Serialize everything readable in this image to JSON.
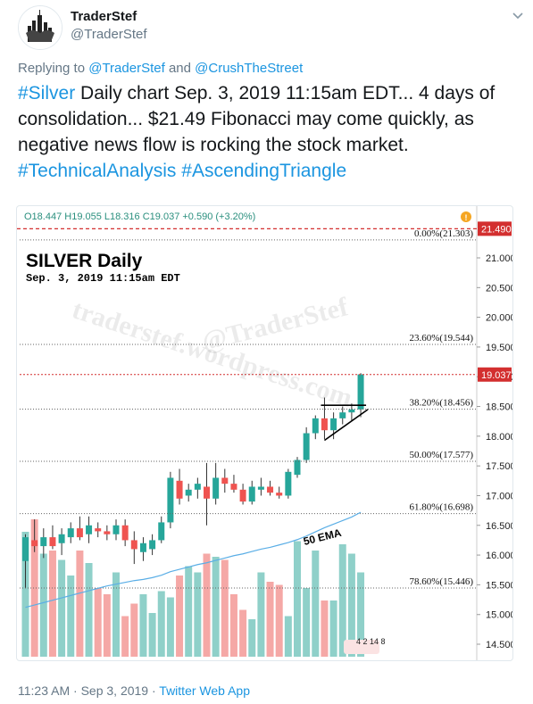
{
  "tweet": {
    "display_name": "TraderStef",
    "handle": "@TraderStef",
    "reply_prefix": "Replying to",
    "reply_to_1": "@TraderStef",
    "reply_and": "and",
    "reply_to_2": "@CrushTheStreet",
    "hashtag_silver": "#Silver",
    "text_1": " Daily chart Sep. 3, 2019 11:15am EDT... 4 days of consolidation... $21.49 Fibonacci may come quickly, as negative news flow is rocking the stock market. ",
    "hashtag_ta": "#TechnicalAnalysis",
    "hashtag_at": "#AscendingTriangle",
    "time": "11:23 AM",
    "sep1": " · ",
    "date": "Sep 3, 2019",
    "sep2": " · ",
    "source": "Twitter Web App",
    "colors": {
      "link": "#1b95e0",
      "muted": "#657786",
      "text": "#14171a"
    }
  },
  "chart": {
    "ohlc": "O18.447  H19.055  L18.316  C19.037  +0.590 (+3.20%)",
    "title": "SILVER Daily",
    "subtitle": "Sep. 3, 2019 11:15am EDT",
    "watermark_1": "@TraderStef",
    "watermark_2": "traderstef.wordpress.com",
    "ema_label": "50 EMA",
    "bottom_numbers": "4 2 14 8",
    "top_price_label": "21.490",
    "current_price_label": "19.037",
    "colors": {
      "up": "#26a69a",
      "down": "#ef5350",
      "ema": "#5aaee6",
      "redline": "#d32f2f",
      "fib": "#666666"
    }
  },
  "chart_data": {
    "type": "candlestick",
    "title": "SILVER Daily",
    "ylim": [
      14.3,
      21.6
    ],
    "y_ticks": [
      "21.000",
      "20.500",
      "20.000",
      "19.500",
      "19.000",
      "18.500",
      "18.000",
      "17.500",
      "17.000",
      "16.500",
      "16.000",
      "15.500",
      "15.000",
      "14.500"
    ],
    "fib_levels": [
      {
        "label": "0.00%(21.303)",
        "value": 21.303
      },
      {
        "label": "23.60%(19.544)",
        "value": 19.544
      },
      {
        "label": "38.20%(18.456)",
        "value": 18.456
      },
      {
        "label": "50.00%(17.577)",
        "value": 17.577
      },
      {
        "label": "61.80%(16.698)",
        "value": 16.698
      },
      {
        "label": "78.60%(15.446)",
        "value": 15.446
      }
    ],
    "candles": [
      {
        "o": 15.9,
        "h": 16.35,
        "l": 15.45,
        "c": 16.3
      },
      {
        "o": 16.25,
        "h": 16.6,
        "l": 16.05,
        "c": 16.15
      },
      {
        "o": 16.15,
        "h": 16.45,
        "l": 15.95,
        "c": 16.3
      },
      {
        "o": 16.3,
        "h": 16.5,
        "l": 16.1,
        "c": 16.15
      },
      {
        "o": 16.2,
        "h": 16.45,
        "l": 16.0,
        "c": 16.35
      },
      {
        "o": 16.3,
        "h": 16.55,
        "l": 16.2,
        "c": 16.45
      },
      {
        "o": 16.45,
        "h": 16.65,
        "l": 16.25,
        "c": 16.3
      },
      {
        "o": 16.35,
        "h": 16.65,
        "l": 16.2,
        "c": 16.5
      },
      {
        "o": 16.45,
        "h": 16.55,
        "l": 16.3,
        "c": 16.4
      },
      {
        "o": 16.4,
        "h": 16.5,
        "l": 16.25,
        "c": 16.35
      },
      {
        "o": 16.35,
        "h": 16.6,
        "l": 16.25,
        "c": 16.5
      },
      {
        "o": 16.5,
        "h": 16.6,
        "l": 16.15,
        "c": 16.25
      },
      {
        "o": 16.25,
        "h": 16.4,
        "l": 15.85,
        "c": 16.1
      },
      {
        "o": 16.05,
        "h": 16.3,
        "l": 15.9,
        "c": 16.2
      },
      {
        "o": 16.1,
        "h": 16.35,
        "l": 16.0,
        "c": 16.25
      },
      {
        "o": 16.25,
        "h": 16.65,
        "l": 16.2,
        "c": 16.55
      },
      {
        "o": 16.55,
        "h": 17.4,
        "l": 16.45,
        "c": 17.3
      },
      {
        "o": 17.25,
        "h": 17.45,
        "l": 16.85,
        "c": 16.95
      },
      {
        "o": 17.0,
        "h": 17.2,
        "l": 16.9,
        "c": 17.1
      },
      {
        "o": 17.1,
        "h": 17.3,
        "l": 16.95,
        "c": 17.2
      },
      {
        "o": 17.15,
        "h": 17.55,
        "l": 16.5,
        "c": 16.95
      },
      {
        "o": 16.95,
        "h": 17.55,
        "l": 16.85,
        "c": 17.3
      },
      {
        "o": 17.3,
        "h": 17.45,
        "l": 17.05,
        "c": 17.2
      },
      {
        "o": 17.2,
        "h": 17.35,
        "l": 17.05,
        "c": 17.1
      },
      {
        "o": 17.1,
        "h": 17.2,
        "l": 16.85,
        "c": 16.9
      },
      {
        "o": 16.9,
        "h": 17.25,
        "l": 16.85,
        "c": 17.15
      },
      {
        "o": 17.1,
        "h": 17.3,
        "l": 17.0,
        "c": 17.15
      },
      {
        "o": 17.15,
        "h": 17.25,
        "l": 17.0,
        "c": 17.05
      },
      {
        "o": 17.05,
        "h": 17.15,
        "l": 16.95,
        "c": 17.0
      },
      {
        "o": 17.0,
        "h": 17.45,
        "l": 16.95,
        "c": 17.4
      },
      {
        "o": 17.35,
        "h": 17.65,
        "l": 17.3,
        "c": 17.6
      },
      {
        "o": 17.6,
        "h": 18.15,
        "l": 17.55,
        "c": 18.05
      },
      {
        "o": 18.05,
        "h": 18.35,
        "l": 17.95,
        "c": 18.3
      },
      {
        "o": 18.3,
        "h": 18.65,
        "l": 17.95,
        "c": 18.1
      },
      {
        "o": 18.1,
        "h": 18.4,
        "l": 17.95,
        "c": 18.3
      },
      {
        "o": 18.3,
        "h": 18.5,
        "l": 18.2,
        "c": 18.4
      },
      {
        "o": 18.4,
        "h": 18.55,
        "l": 18.25,
        "c": 18.45
      },
      {
        "o": 18.45,
        "h": 19.06,
        "l": 18.32,
        "c": 19.04
      }
    ],
    "volumes": [
      40,
      44,
      33,
      34,
      31,
      26,
      34,
      30,
      22,
      20,
      27,
      13,
      17,
      20,
      14,
      21,
      19,
      26,
      29,
      27,
      33,
      32,
      31,
      20,
      15,
      12,
      27,
      24,
      23,
      13,
      37,
      22,
      34,
      18,
      18,
      36,
      33,
      27
    ],
    "ema50": [
      15.12,
      15.16,
      15.2,
      15.24,
      15.28,
      15.32,
      15.36,
      15.4,
      15.44,
      15.48,
      15.51,
      15.54,
      15.57,
      15.59,
      15.62,
      15.66,
      15.72,
      15.76,
      15.8,
      15.84,
      15.87,
      15.91,
      15.95,
      15.99,
      16.02,
      16.06,
      16.1,
      16.13,
      16.17,
      16.21,
      16.26,
      16.32,
      16.39,
      16.46,
      16.52,
      16.58,
      16.64,
      16.72
    ]
  }
}
